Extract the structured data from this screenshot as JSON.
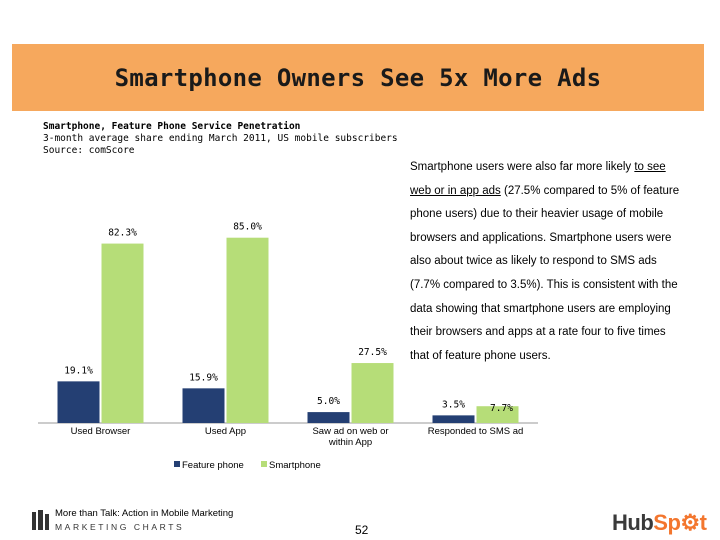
{
  "slide": {
    "title": "Smartphone Owners See 5x More Ads",
    "subtitle_1": "Smartphone, Feature Phone Service Penetration",
    "subtitle_2": "3-month average share ending March 2011, US mobile subscribers",
    "source": "Source: comScore",
    "description_before_link": "Smartphone users were also far more likely ",
    "description_link": "to see web or in app ads",
    "description_after_link": " (27.5% compared to 5% of feature phone users) due to their heavier usage of mobile browsers and applications. Smartphone users were also about twice as likely to respond to SMS ads (7.7% compared to 3.5%). This is consistent with the data showing that smartphone users are employing their browsers and apps at a rate four to five times that of feature phone users.",
    "footer_text": "More than Talk: Action in Mobile Marketing",
    "footer_brand": "MARKETING CHARTS",
    "page_number": "52",
    "logo_text_hub": "Hub",
    "logo_text_spot": "Sp",
    "logo_text_end": "t",
    "colors": {
      "title_band": "#f6a85d",
      "feature_phone": "#243f73",
      "smartphone": "#b6dd78",
      "hubspot_orange": "#f3762e"
    }
  },
  "chart_data": {
    "type": "bar",
    "categories": [
      "Used Browser",
      "Used App",
      "Saw ad on web or within App",
      "Responded to SMS ad"
    ],
    "series": [
      {
        "name": "Feature phone",
        "values": [
          19.1,
          15.9,
          5.0,
          3.5
        ],
        "labels": [
          "19.1%",
          "15.9%",
          "5.0%",
          "3.5%"
        ],
        "color": "#243f73"
      },
      {
        "name": "Smartphone",
        "values": [
          82.3,
          85.0,
          27.5,
          7.7
        ],
        "labels": [
          "82.3%",
          "85.0%",
          "27.5%",
          "7.7%"
        ],
        "color": "#b6dd78"
      }
    ],
    "ylim": [
      0,
      100
    ],
    "grid": false,
    "legend": "bottom"
  }
}
